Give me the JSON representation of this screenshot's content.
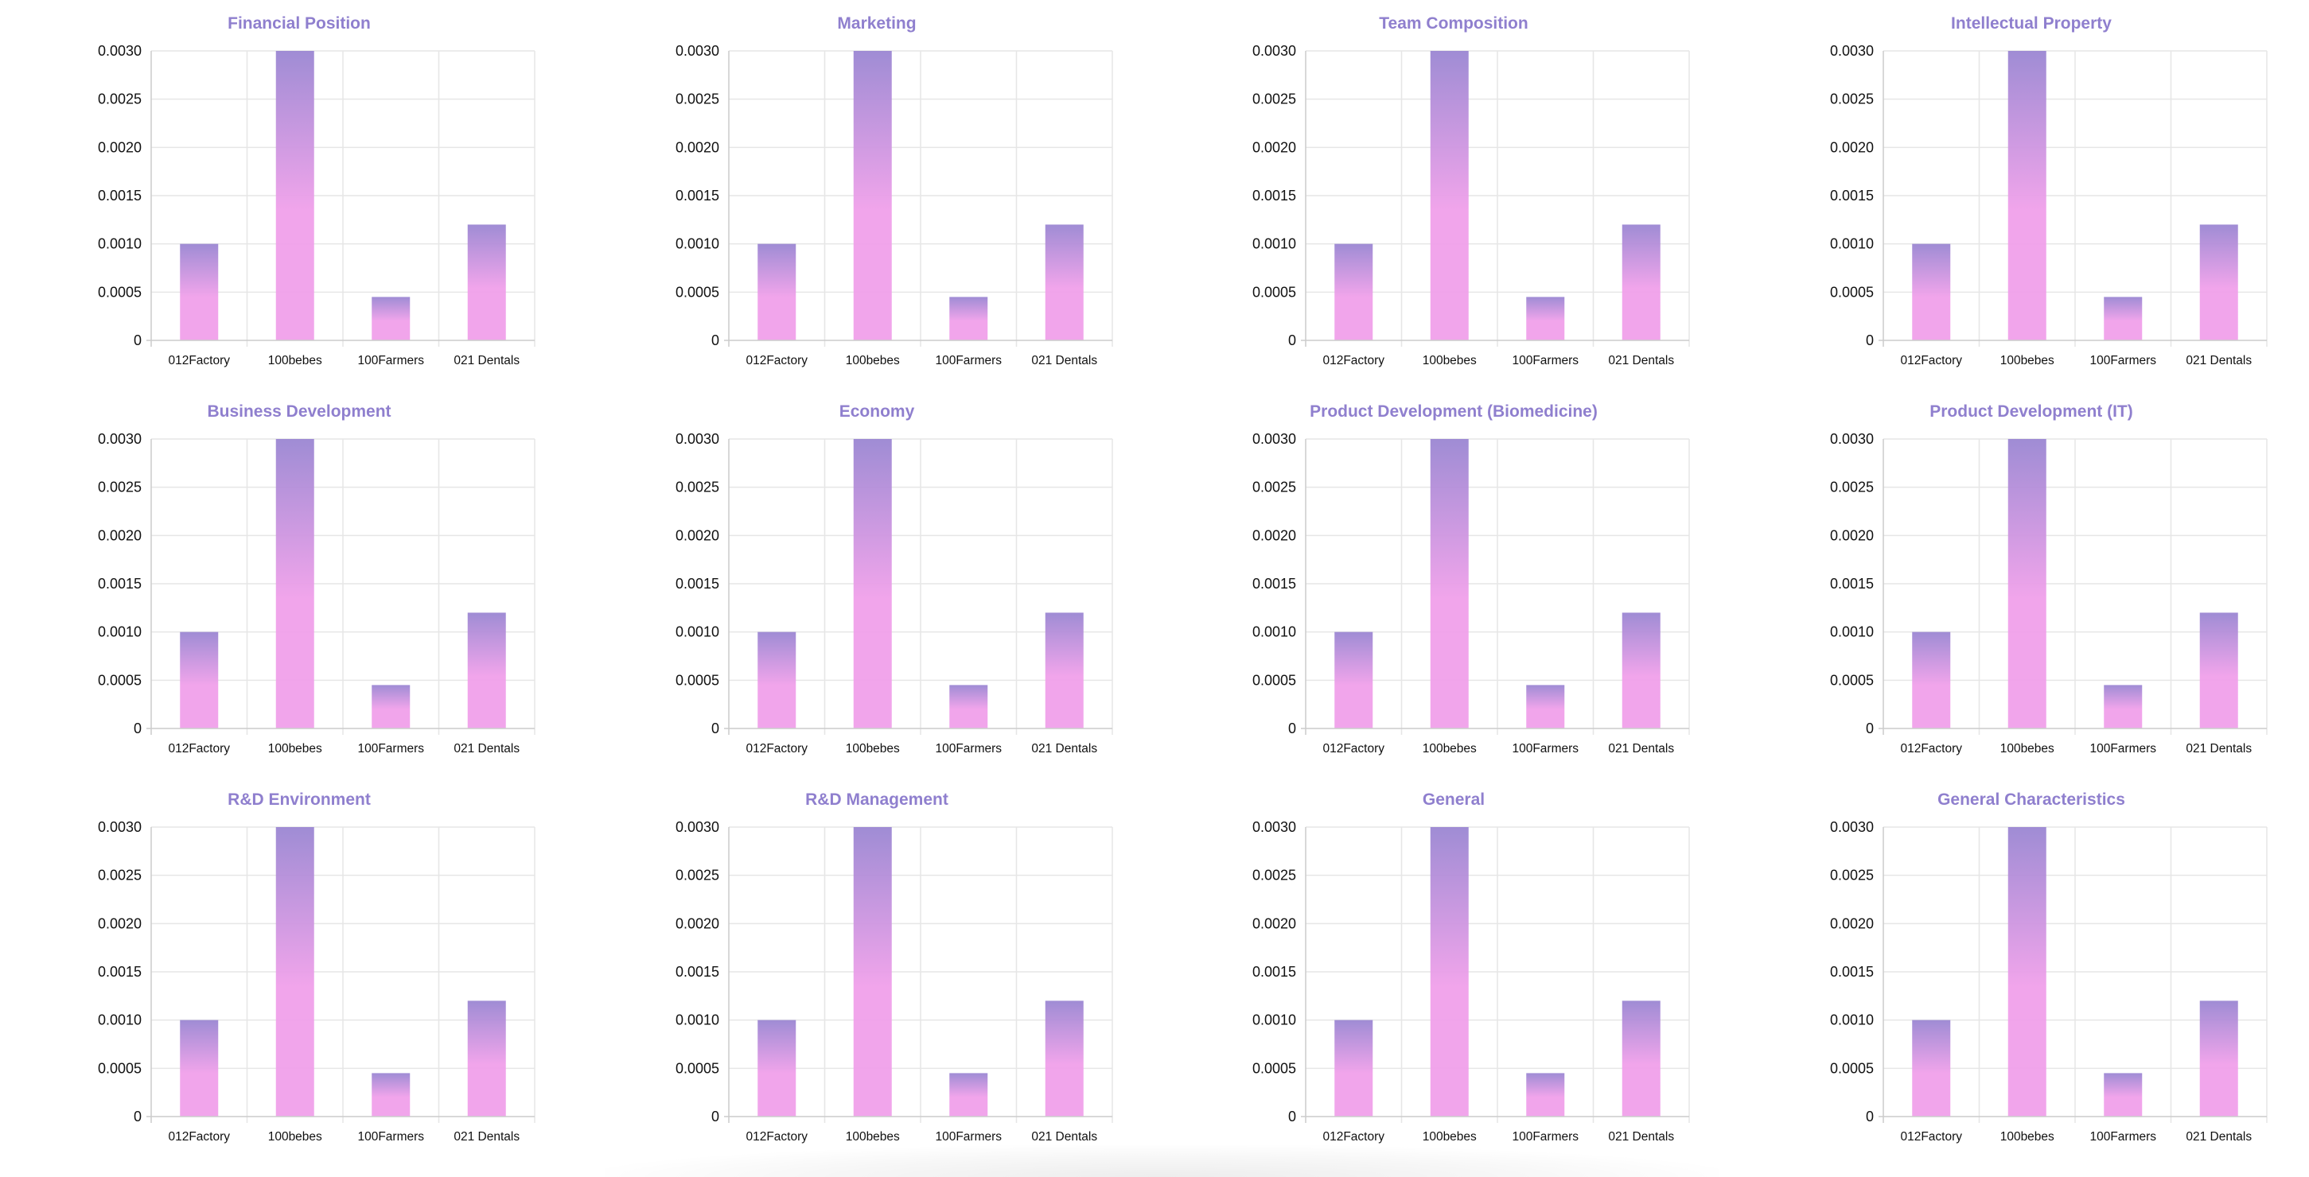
{
  "colors": {
    "title": "#8f7fce",
    "bar_top": "#9a86d2",
    "bar_main": "#f0a0ea",
    "grid": "#e6e6e6",
    "axis": "#cccccc"
  },
  "chart_data": [
    {
      "type": "bar",
      "title": "Financial Position",
      "categories": [
        "012Factory",
        "100bebes",
        "100Farmers",
        "021 Dentals"
      ],
      "values": [
        0.001,
        0.003,
        0.00045,
        0.0012
      ],
      "ylim": [
        0,
        0.003
      ],
      "yticks": [
        "0",
        "0.0005",
        "0.0010",
        "0.0015",
        "0.0020",
        "0.0025",
        "0.0030"
      ],
      "grid": true
    },
    {
      "type": "bar",
      "title": "Marketing",
      "categories": [
        "012Factory",
        "100bebes",
        "100Farmers",
        "021 Dentals"
      ],
      "values": [
        0.001,
        0.003,
        0.00045,
        0.0012
      ],
      "ylim": [
        0,
        0.003
      ],
      "yticks": [
        "0",
        "0.0005",
        "0.0010",
        "0.0015",
        "0.0020",
        "0.0025",
        "0.0030"
      ],
      "grid": true
    },
    {
      "type": "bar",
      "title": "Team Composition",
      "categories": [
        "012Factory",
        "100bebes",
        "100Farmers",
        "021 Dentals"
      ],
      "values": [
        0.001,
        0.003,
        0.00045,
        0.0012
      ],
      "ylim": [
        0,
        0.003
      ],
      "yticks": [
        "0",
        "0.0005",
        "0.0010",
        "0.0015",
        "0.0020",
        "0.0025",
        "0.0030"
      ],
      "grid": true
    },
    {
      "type": "bar",
      "title": "Intellectual Property",
      "categories": [
        "012Factory",
        "100bebes",
        "100Farmers",
        "021 Dentals"
      ],
      "values": [
        0.001,
        0.003,
        0.00045,
        0.0012
      ],
      "ylim": [
        0,
        0.003
      ],
      "yticks": [
        "0",
        "0.0005",
        "0.0010",
        "0.0015",
        "0.0020",
        "0.0025",
        "0.0030"
      ],
      "grid": true
    },
    {
      "type": "bar",
      "title": "Business Development",
      "categories": [
        "012Factory",
        "100bebes",
        "100Farmers",
        "021 Dentals"
      ],
      "values": [
        0.001,
        0.003,
        0.00045,
        0.0012
      ],
      "ylim": [
        0,
        0.003
      ],
      "yticks": [
        "0",
        "0.0005",
        "0.0010",
        "0.0015",
        "0.0020",
        "0.0025",
        "0.0030"
      ],
      "grid": true
    },
    {
      "type": "bar",
      "title": "Economy",
      "categories": [
        "012Factory",
        "100bebes",
        "100Farmers",
        "021 Dentals"
      ],
      "values": [
        0.001,
        0.003,
        0.00045,
        0.0012
      ],
      "ylim": [
        0,
        0.003
      ],
      "yticks": [
        "0",
        "0.0005",
        "0.0010",
        "0.0015",
        "0.0020",
        "0.0025",
        "0.0030"
      ],
      "grid": true
    },
    {
      "type": "bar",
      "title": "Product Development (Biomedicine)",
      "categories": [
        "012Factory",
        "100bebes",
        "100Farmers",
        "021 Dentals"
      ],
      "values": [
        0.001,
        0.003,
        0.00045,
        0.0012
      ],
      "ylim": [
        0,
        0.003
      ],
      "yticks": [
        "0",
        "0.0005",
        "0.0010",
        "0.0015",
        "0.0020",
        "0.0025",
        "0.0030"
      ],
      "grid": true
    },
    {
      "type": "bar",
      "title": "Product Development (IT)",
      "categories": [
        "012Factory",
        "100bebes",
        "100Farmers",
        "021 Dentals"
      ],
      "values": [
        0.001,
        0.003,
        0.00045,
        0.0012
      ],
      "ylim": [
        0,
        0.003
      ],
      "yticks": [
        "0",
        "0.0005",
        "0.0010",
        "0.0015",
        "0.0020",
        "0.0025",
        "0.0030"
      ],
      "grid": true
    },
    {
      "type": "bar",
      "title": "R&D Environment",
      "categories": [
        "012Factory",
        "100bebes",
        "100Farmers",
        "021 Dentals"
      ],
      "values": [
        0.001,
        0.003,
        0.00045,
        0.0012
      ],
      "ylim": [
        0,
        0.003
      ],
      "yticks": [
        "0",
        "0.0005",
        "0.0010",
        "0.0015",
        "0.0020",
        "0.0025",
        "0.0030"
      ],
      "grid": true
    },
    {
      "type": "bar",
      "title": "R&D Management",
      "categories": [
        "012Factory",
        "100bebes",
        "100Farmers",
        "021 Dentals"
      ],
      "values": [
        0.001,
        0.003,
        0.00045,
        0.0012
      ],
      "ylim": [
        0,
        0.003
      ],
      "yticks": [
        "0",
        "0.0005",
        "0.0010",
        "0.0015",
        "0.0020",
        "0.0025",
        "0.0030"
      ],
      "grid": true
    },
    {
      "type": "bar",
      "title": "General",
      "categories": [
        "012Factory",
        "100bebes",
        "100Farmers",
        "021 Dentals"
      ],
      "values": [
        0.001,
        0.003,
        0.00045,
        0.0012
      ],
      "ylim": [
        0,
        0.003
      ],
      "yticks": [
        "0",
        "0.0005",
        "0.0010",
        "0.0015",
        "0.0020",
        "0.0025",
        "0.0030"
      ],
      "grid": true
    },
    {
      "type": "bar",
      "title": "General Characteristics",
      "categories": [
        "012Factory",
        "100bebes",
        "100Farmers",
        "021 Dentals"
      ],
      "values": [
        0.001,
        0.003,
        0.00045,
        0.0012
      ],
      "ylim": [
        0,
        0.003
      ],
      "yticks": [
        "0",
        "0.0005",
        "0.0010",
        "0.0015",
        "0.0020",
        "0.0025",
        "0.0030"
      ],
      "grid": true
    }
  ]
}
